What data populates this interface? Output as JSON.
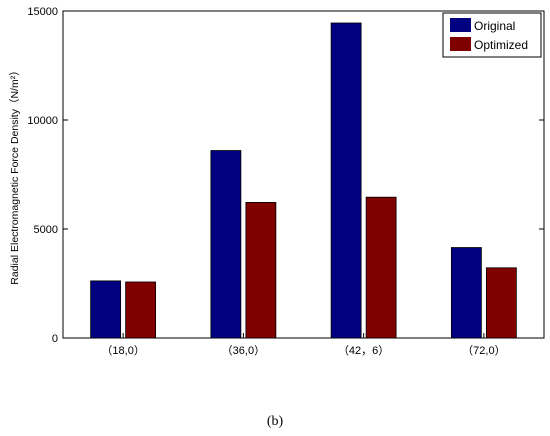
{
  "chart_data": {
    "type": "bar",
    "categories": [
      "（18,0）",
      "（36,0）",
      "（42，6）",
      "（72,0）"
    ],
    "series": [
      {
        "name": "Original",
        "color": "#000080",
        "values": [
          2620,
          8600,
          14450,
          4150
        ]
      },
      {
        "name": "Optimized",
        "color": "#800000",
        "values": [
          2570,
          6220,
          6460,
          3220
        ]
      }
    ],
    "ylabel": "Radial Electromagnetic Force Density（N/m²）",
    "ylim": [
      0,
      15000
    ],
    "yticks": [
      "0",
      "5000",
      "10000",
      "15000"
    ],
    "legend_position": "top-right",
    "grid": false
  },
  "caption": "(b)"
}
